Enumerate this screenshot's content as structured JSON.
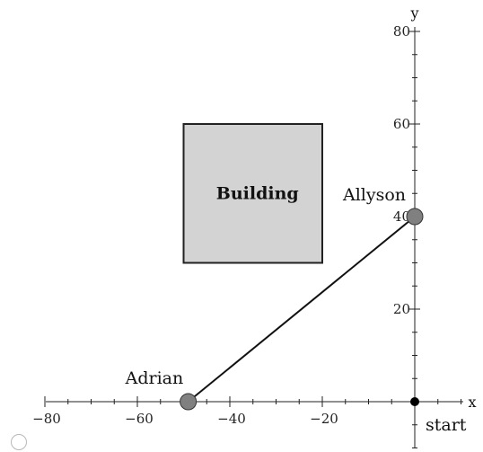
{
  "axes": {
    "x_label": "x",
    "y_label": "y",
    "x_range": [
      -80,
      10
    ],
    "y_range": [
      -10,
      80
    ],
    "x_ticks": [
      -80,
      -60,
      -40,
      -20
    ],
    "y_ticks": [
      20,
      40,
      60,
      80
    ],
    "x_tick_labels": [
      "−80",
      "−60",
      "−40",
      "−20"
    ],
    "y_tick_labels": [
      "20",
      "40",
      "60",
      "80"
    ]
  },
  "building": {
    "label": "Building",
    "x_min": -50,
    "x_max": -20,
    "y_min": 30,
    "y_max": 60,
    "fill": "#d3d3d3",
    "stroke": "#222222"
  },
  "points": {
    "adrian": {
      "label": "Adrian",
      "x": -49,
      "y": 0,
      "color": "#808080"
    },
    "allyson": {
      "label": "Allyson",
      "x": 0,
      "y": 40,
      "color": "#808080"
    },
    "start": {
      "label": "start",
      "x": 0,
      "y": 0,
      "color": "#000000"
    }
  },
  "colors": {
    "axis": "#222222",
    "segment": "#111111"
  }
}
